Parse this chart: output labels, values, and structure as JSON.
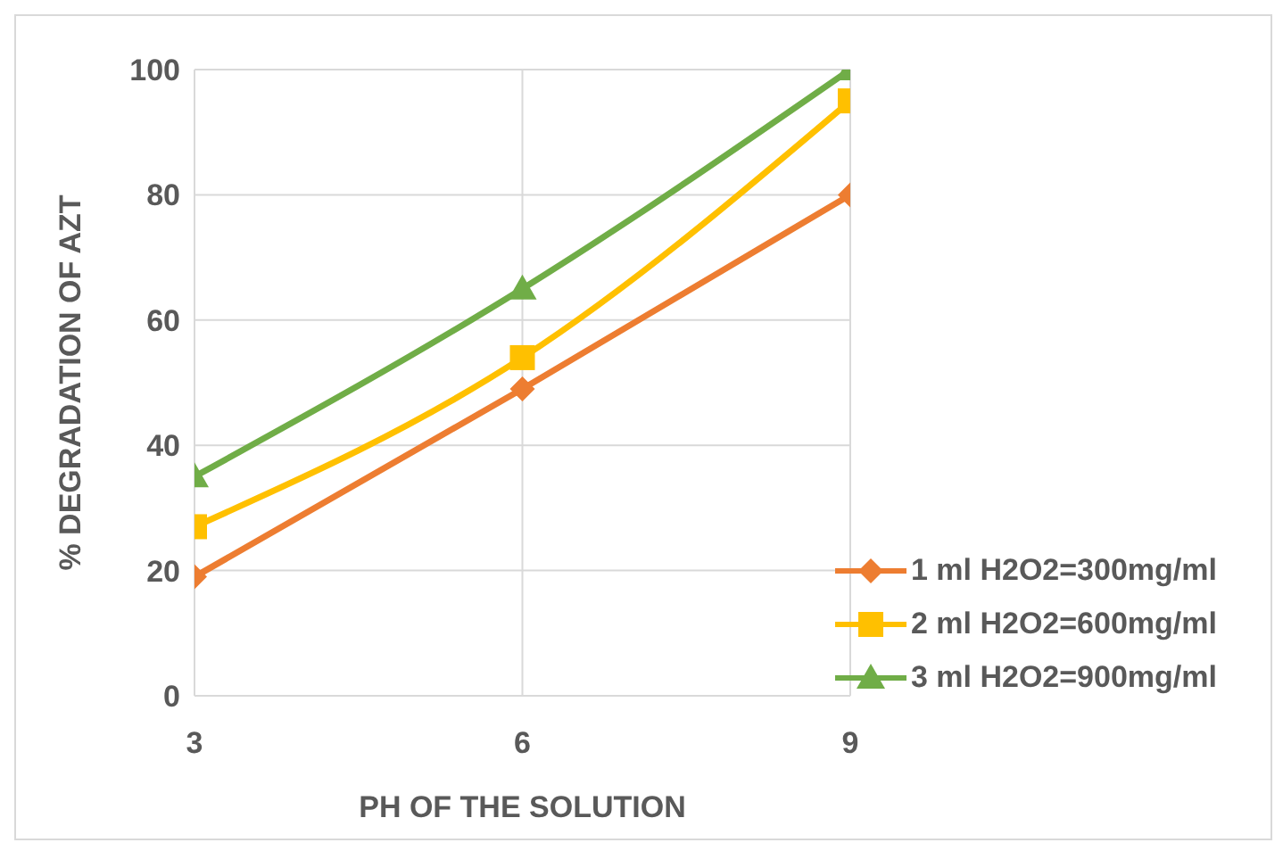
{
  "chart_data": {
    "type": "line",
    "xlabel": "PH OF THE SOLUTION",
    "ylabel": "% DEGRADATION OF AZT",
    "x": [
      3,
      6,
      9
    ],
    "xlim": [
      3,
      9
    ],
    "xticks": [
      3,
      6,
      9
    ],
    "ylim": [
      0,
      100
    ],
    "yticks": [
      0,
      20,
      40,
      60,
      80,
      100
    ],
    "grid": true,
    "legend": "bottom right",
    "series": [
      {
        "name": "1 ml H2O2=300mg/ml",
        "color": "#ed7d31",
        "marker": "diamond",
        "values": [
          19,
          49,
          80
        ]
      },
      {
        "name": "2 ml H2O2=600mg/ml",
        "color": "#ffc000",
        "marker": "square",
        "values": [
          27,
          54,
          95
        ]
      },
      {
        "name": "3 ml H2O2=900mg/ml",
        "color": "#70ad47",
        "marker": "triangle",
        "values": [
          35,
          65,
          100
        ]
      }
    ]
  }
}
